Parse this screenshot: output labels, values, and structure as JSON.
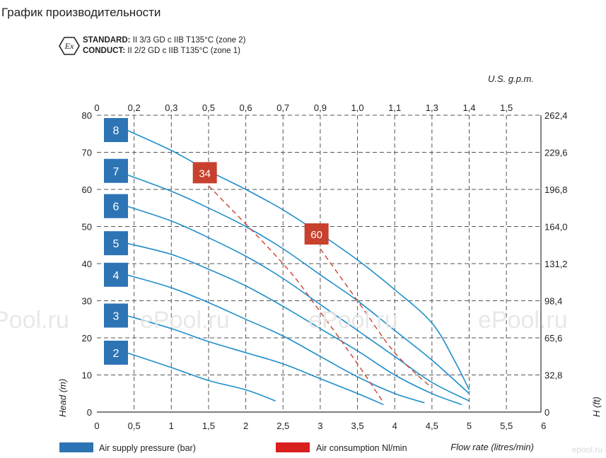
{
  "page": {
    "title": "График производительности",
    "ex_mark": "Ex",
    "standard": {
      "label": "STANDARD:",
      "text": "II 3/3 GD c IIB T135°C (zone 2)"
    },
    "conduct": {
      "label": "CONDUCT:",
      "text": "II 2/2 GD c IIB T135°C (zone 1)"
    },
    "watermarks": [
      "Pool.ru",
      "ePool.ru",
      "ePool.ru",
      "ePool.ru"
    ],
    "footer_logo": "epool.ru"
  },
  "chart_data": {
    "type": "line",
    "title": "",
    "xlabel": "Flow rate (litres/min)",
    "ylabel": "Head (m)",
    "y2label": "H (ft)",
    "x2label": "U.S. g.p.m.",
    "xlim": [
      0,
      6
    ],
    "ylim": [
      0,
      80
    ],
    "x_ticks": [
      0,
      0.5,
      1,
      1.5,
      2,
      2.5,
      3,
      3.5,
      4,
      4.5,
      5,
      5.5,
      6
    ],
    "x_tick_labels": [
      "0",
      "0,5",
      "1",
      "1,5",
      "2",
      "2,5",
      "3",
      "3,5",
      "4",
      "4,5",
      "5",
      "5,5",
      "6"
    ],
    "y_ticks": [
      0,
      10,
      20,
      30,
      40,
      50,
      60,
      70,
      80
    ],
    "y_tick_labels": [
      "0",
      "10",
      "20",
      "30",
      "40",
      "50",
      "60",
      "70",
      "80"
    ],
    "y2_tick_labels": [
      "0",
      "32,8",
      "65,6",
      "98,4",
      "131,2",
      "164,0",
      "196,8",
      "229,6",
      "262,4"
    ],
    "x2_tick_labels": [
      "0",
      "0,2",
      "0,3",
      "0,5",
      "0,6",
      "0,7",
      "0,9",
      "1,0",
      "1,1",
      "1,3",
      "1,4",
      "1,5"
    ],
    "grid": true,
    "legend": [
      {
        "label": "Air supply pressure (bar)",
        "color": "#2d74b5"
      },
      {
        "label": "Air consumption Nl/min",
        "color": "#d91e1e"
      }
    ],
    "series": [
      {
        "name": "8",
        "color": "#1e8ec9",
        "x": [
          0.4,
          1.0,
          1.5,
          2.0,
          2.5,
          3.0,
          3.5,
          4.0,
          4.5,
          4.8,
          5.0
        ],
        "y": [
          76,
          70.5,
          65,
          60,
          54.5,
          48,
          41,
          33,
          24,
          14,
          6
        ]
      },
      {
        "name": "7",
        "color": "#1e8ec9",
        "x": [
          0.4,
          1.0,
          1.5,
          2.0,
          2.5,
          3.0,
          3.5,
          4.0,
          4.5,
          5.0
        ],
        "y": [
          64,
          59.5,
          55,
          50,
          44,
          37,
          30,
          22,
          14,
          5
        ]
      },
      {
        "name": "6",
        "color": "#1e8ec9",
        "x": [
          0.4,
          1.0,
          1.5,
          2.0,
          2.5,
          3.0,
          3.5,
          4.0,
          4.5,
          5.0
        ],
        "y": [
          55.5,
          51.5,
          47,
          42,
          36,
          29,
          22,
          15,
          8,
          3
        ]
      },
      {
        "name": "5",
        "color": "#1e8ec9",
        "x": [
          0.4,
          1.0,
          1.5,
          2.0,
          2.5,
          3.0,
          3.5,
          4.0,
          4.5,
          4.9
        ],
        "y": [
          45.5,
          42.5,
          38.5,
          34,
          28.5,
          22.5,
          16.5,
          10,
          5,
          2
        ]
      },
      {
        "name": "4",
        "color": "#1e8ec9",
        "x": [
          0.4,
          1.0,
          1.5,
          2.0,
          2.5,
          3.0,
          3.5,
          4.0,
          4.4
        ],
        "y": [
          37,
          33.5,
          29.5,
          25,
          20.5,
          15,
          9.5,
          5,
          2.5
        ]
      },
      {
        "name": "3",
        "color": "#1e8ec9",
        "x": [
          0.4,
          1.0,
          1.5,
          2.0,
          2.5,
          3.0,
          3.5,
          3.85
        ],
        "y": [
          26,
          22.5,
          19,
          16,
          13,
          9,
          5,
          2
        ]
      },
      {
        "name": "2",
        "color": "#1e8ec9",
        "x": [
          0.4,
          1.0,
          1.5,
          2.0,
          2.4
        ],
        "y": [
          16,
          12,
          8.5,
          6,
          3
        ]
      },
      {
        "name": "34",
        "color": "#d04a3a",
        "dashed": true,
        "x": [
          1.5,
          2.5,
          3.0,
          3.5,
          3.85
        ],
        "y": [
          61,
          40,
          27,
          13,
          2.5
        ]
      },
      {
        "name": "60",
        "color": "#d04a3a",
        "dashed": true,
        "x": [
          3.0,
          3.5,
          4.0,
          4.5
        ],
        "y": [
          44,
          30,
          16,
          6.5
        ]
      }
    ],
    "pressure_labels": [
      {
        "text": "8",
        "y": 76
      },
      {
        "text": "7",
        "y": 65
      },
      {
        "text": "6",
        "y": 55.5
      },
      {
        "text": "5",
        "y": 45.5
      },
      {
        "text": "4",
        "y": 37
      },
      {
        "text": "3",
        "y": 26
      },
      {
        "text": "2",
        "y": 16
      }
    ],
    "consumption_labels": [
      {
        "text": "34",
        "x": 1.45,
        "y": 64.5
      },
      {
        "text": "60",
        "x": 2.95,
        "y": 48
      }
    ]
  }
}
